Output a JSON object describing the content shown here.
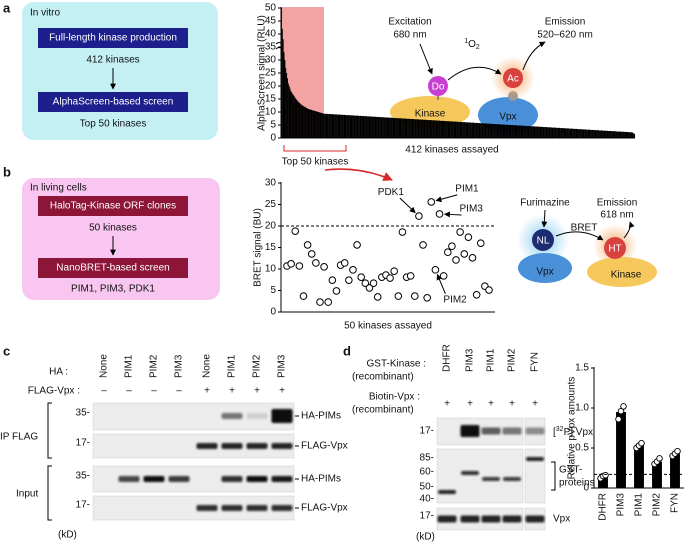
{
  "panel_labels": [
    "a",
    "b",
    "c",
    "d"
  ],
  "panel_a": {
    "box_title": "In vitro",
    "steps": [
      "Full-length kinase production",
      "AlphaScreen-based screen"
    ],
    "counts": [
      "412 kinases",
      "Top 50 kinases"
    ],
    "top_label": "Top 50 kinases",
    "schematic": {
      "excitation": "Excitation",
      "excitation_wavelength": "680 nm",
      "singlet_oxygen": {
        "superscript": "1",
        "base": "O",
        "subscript": "2"
      },
      "emission": "Emission",
      "emission_wavelength": "520–620 nm",
      "donor": "Do",
      "acceptor": "Ac",
      "kinase": "Kinase",
      "vpx": "Vpx"
    }
  },
  "panel_b": {
    "box_title": "In living cells",
    "steps": [
      "HaloTag-Kinase ORF clones",
      "NanoBRET-based screen"
    ],
    "counts": [
      "50 kinases",
      "PIM1, PIM3, PDK1"
    ],
    "schematic": {
      "substrate": "Furimazine",
      "transfer": "BRET",
      "emission": "Emission",
      "emission_wavelength": "618 nm",
      "donor": "NL",
      "acceptor": "HT",
      "vpx": "Vpx",
      "kinase": "Kinase"
    }
  },
  "panel_c": {
    "ha_label": "HA :",
    "lanes": [
      "None",
      "PIM1",
      "PIM2",
      "PIM3",
      "None",
      "PIM1",
      "PIM2",
      "PIM3"
    ],
    "flag_label": "FLAG-Vpx :",
    "flag_signs": [
      "–",
      "–",
      "–",
      "–",
      "+",
      "+",
      "+",
      "+"
    ],
    "groups": [
      "IP FLAG",
      "Input"
    ],
    "markers": [
      "35-",
      "17-",
      "35-",
      "17-"
    ],
    "bands": [
      "HA-PIMs",
      "FLAG-Vpx",
      "HA-PIMs",
      "FLAG-Vpx"
    ],
    "unit": "(kD)"
  },
  "panel_d": {
    "kinase_label": "GST-Kinase :",
    "kinase_note": "(recombinant)",
    "lanes": [
      "DHFR",
      "PIM3",
      "PIM1",
      "PIM2",
      "FYN"
    ],
    "substrate_label": "Biotin-Vpx :",
    "substrate_note": "(recombinant)",
    "substrate_signs": [
      "+",
      "+",
      "+",
      "+",
      "+"
    ],
    "markers": [
      "17-",
      "85-",
      "60-",
      "50-",
      "40-",
      "17-"
    ],
    "bands": {
      "radiolabel": {
        "prefix": "[",
        "superscript": "32",
        "rest": "P] Vpx"
      },
      "gst": [
        "GST-",
        "proteins"
      ],
      "vpx": "Vpx"
    },
    "unit": "(kD)"
  },
  "chart_data": [
    {
      "type": "bar",
      "y_label": "AlphaScreen signal (RLU)",
      "x_label": "412 kinases assayed",
      "color": "#000000",
      "highlight": {
        "first": 1,
        "last": 50,
        "color": "#f4a3a3"
      },
      "ylim": [
        0,
        50
      ],
      "yticks": [
        0,
        5,
        10,
        15,
        20,
        25,
        30,
        35,
        40,
        45,
        50
      ],
      "values": [
        50,
        42,
        38,
        33,
        30,
        27,
        25,
        23,
        21,
        20,
        19,
        18,
        17.5,
        17,
        16.5,
        16,
        15.5,
        15,
        14.6,
        14.2,
        13.8,
        13.5,
        13.2,
        12.9,
        12.6,
        12.4,
        12.2,
        12,
        11.8,
        11.6,
        11.4,
        11.2,
        11.1,
        11,
        10.9,
        10.8,
        10.7,
        10.6,
        10.5,
        10.4,
        10.3,
        10.2,
        10.1,
        10,
        9.9,
        9.8,
        9.7,
        9.6,
        9.5,
        9.4,
        9.3,
        9.3,
        9.3,
        9.3,
        9.3,
        9.2,
        9.2,
        9.2,
        9.2,
        9.2,
        9.1,
        9.1,
        9.1,
        9.1,
        9.1,
        9,
        9,
        9,
        9,
        9,
        8.9,
        8.9,
        8.9,
        8.9,
        8.9,
        8.8,
        8.8,
        8.8,
        8.8,
        8.8,
        8.7,
        8.7,
        8.7,
        8.7,
        8.7,
        8.6,
        8.6,
        8.6,
        8.6,
        8.6,
        8.5,
        8.5,
        8.5,
        8.5,
        8.5,
        8.4,
        8.4,
        8.4,
        8.4,
        8.4,
        8.3,
        8.3,
        8.3,
        8.3,
        8.3,
        8.2,
        8.2,
        8.2,
        8.2,
        8.2,
        8.1,
        8.1,
        8.1,
        8.1,
        8.1,
        8,
        8,
        8,
        8,
        8,
        7.9,
        7.9,
        7.9,
        7.9,
        7.9,
        7.8,
        7.8,
        7.8,
        7.8,
        7.8,
        7.7,
        7.7,
        7.7,
        7.7,
        7.7,
        7.6,
        7.6,
        7.6,
        7.6,
        7.6,
        7.5,
        7.5,
        7.5,
        7.5,
        7.5,
        7.4,
        7.4,
        7.4,
        7.4,
        7.4,
        7.3,
        7.3,
        7.3,
        7.3,
        7.3,
        7.2,
        7.2,
        7.2,
        7.2,
        7.2,
        7.1,
        7.1,
        7.1,
        7.1,
        7.1,
        7,
        7,
        7,
        7,
        7,
        6.9,
        6.9,
        6.9,
        6.9,
        6.9,
        6.8,
        6.8,
        6.8,
        6.8,
        6.8,
        6.7,
        6.7,
        6.7,
        6.7,
        6.7,
        6.6,
        6.6,
        6.6,
        6.6,
        6.6,
        6.5,
        6.5,
        6.5,
        6.5,
        6.5,
        6.4,
        6.4,
        6.4,
        6.4,
        6.4,
        6.3,
        6.3,
        6.3,
        6.3,
        6.3,
        6.2,
        6.2,
        6.2,
        6.2,
        6.2,
        6.1,
        6.1,
        6.1,
        6.1,
        6.1,
        6,
        6,
        6,
        6,
        6,
        5.9,
        5.9,
        5.9,
        5.9,
        5.9,
        5.8,
        5.8,
        5.8,
        5.8,
        5.8,
        5.7,
        5.7,
        5.7,
        5.7,
        5.7,
        5.6,
        5.6,
        5.6,
        5.6,
        5.6,
        5.5,
        5.5,
        5.5,
        5.5,
        5.5,
        5.4,
        5.4,
        5.4,
        5.4,
        5.4,
        5.3,
        5.3,
        5.3,
        5.3,
        5.3,
        5.2,
        5.2,
        5.2,
        5.2,
        5.2,
        5.1,
        5.1,
        5.1,
        5.1,
        5.1,
        5,
        5,
        5,
        5,
        5,
        4.9,
        4.9,
        4.9,
        4.9,
        4.9,
        4.8,
        4.8,
        4.8,
        4.8,
        4.8,
        4.7,
        4.7,
        4.7,
        4.7,
        4.7,
        4.6,
        4.6,
        4.6,
        4.6,
        4.6,
        4.5,
        4.5,
        4.5,
        4.5,
        4.5,
        4.4,
        4.4,
        4.4,
        4.4,
        4.4,
        4.3,
        4.3,
        4.3,
        4.3,
        4.3,
        4.2,
        4.2,
        4.2,
        4.2,
        4.2,
        4.1,
        4.1,
        4.1,
        4.1,
        4.1,
        4,
        4,
        4,
        4,
        4,
        3.9,
        3.9,
        3.9,
        3.9,
        3.9,
        3.8,
        3.8,
        3.8,
        3.8,
        3.8,
        3.7,
        3.7,
        3.7,
        3.7,
        3.7,
        3.6,
        3.6,
        3.6,
        3.6,
        3.6,
        3.5,
        3.5,
        3.5,
        3.5,
        3.5,
        3.4,
        3.4,
        3.4,
        3.4,
        3.4,
        3.3,
        3.3,
        3.3,
        3.3,
        3.3,
        3.2,
        3.2,
        3.2,
        3.2,
        3.2,
        3.1,
        3.1,
        3.1,
        3.1,
        3.1,
        3,
        3,
        3,
        3,
        3,
        2.9,
        2.9,
        2.9,
        2.9,
        2.9,
        2.8,
        2.8,
        2.8,
        2.8,
        2.8,
        2.7,
        2.7,
        2.7,
        2.7,
        2.7,
        2.6,
        2.6,
        2.6,
        2.6,
        2.6,
        2.5,
        2.5,
        2.5,
        2.5,
        2.5,
        2.4,
        2.4,
        2.4,
        2.4,
        2.4,
        2.3,
        2.3,
        2.3,
        2.3,
        2.3,
        2.2,
        2.2,
        2.2,
        2.2,
        2,
        1.8,
        1.5
      ]
    },
    {
      "type": "scatter",
      "y_label": "BRET signal (BU)",
      "x_label": "50 kinases assayed",
      "color": "#000000",
      "reference_line": 20,
      "ylim": [
        0,
        30
      ],
      "yticks": [
        0,
        5,
        10,
        15,
        20,
        25,
        30
      ],
      "categories": [
        null,
        null,
        null,
        null,
        null,
        null,
        null,
        null,
        null,
        null,
        null,
        null,
        null,
        null,
        null,
        null,
        null,
        null,
        null,
        null,
        null,
        null,
        null,
        null,
        null,
        null,
        null,
        null,
        null,
        null,
        null,
        null,
        "PDK1",
        null,
        null,
        "PIM1",
        "PIM2",
        "PIM3",
        null,
        null,
        null,
        null,
        null,
        null,
        null,
        null,
        null,
        null,
        null,
        null
      ],
      "values": [
        10.7,
        11.2,
        18.8,
        10.7,
        3.7,
        15.6,
        13.5,
        11.4,
        2.3,
        10.5,
        2.3,
        7.4,
        4.9,
        10.9,
        11.4,
        7.4,
        9.8,
        15.6,
        8.1,
        6.7,
        5.6,
        6.7,
        3.5,
        8.1,
        8.6,
        7.9,
        9.5,
        3.7,
        18.6,
        8.1,
        8.4,
        3.7,
        22.3,
        15.6,
        3.3,
        25.6,
        9.8,
        22.8,
        8.4,
        13.9,
        15.3,
        12.1,
        18.6,
        13.5,
        17.4,
        12.6,
        4,
        16,
        6,
        5.1
      ]
    },
    {
      "type": "bar",
      "y_label": "Relative pVpx amounts",
      "color": "#000000",
      "reference_line": 0.17,
      "categories": [
        "DHFR",
        "PIM3",
        "PIM1",
        "PIM2",
        "FYN"
      ],
      "values": [
        0.14,
        0.95,
        0.53,
        0.33,
        0.43
      ],
      "replicates": [
        [
          0.12,
          0.15,
          0.16
        ],
        [
          0.86,
          0.96,
          1.02
        ],
        [
          0.5,
          0.53,
          0.56
        ],
        [
          0.3,
          0.33,
          0.37
        ],
        [
          0.4,
          0.43,
          0.46
        ]
      ],
      "ylim": [
        0,
        1.5
      ],
      "yticks": [
        0,
        0.5,
        {
          "value": 1,
          "label": "1.0"
        },
        1.5
      ]
    }
  ]
}
